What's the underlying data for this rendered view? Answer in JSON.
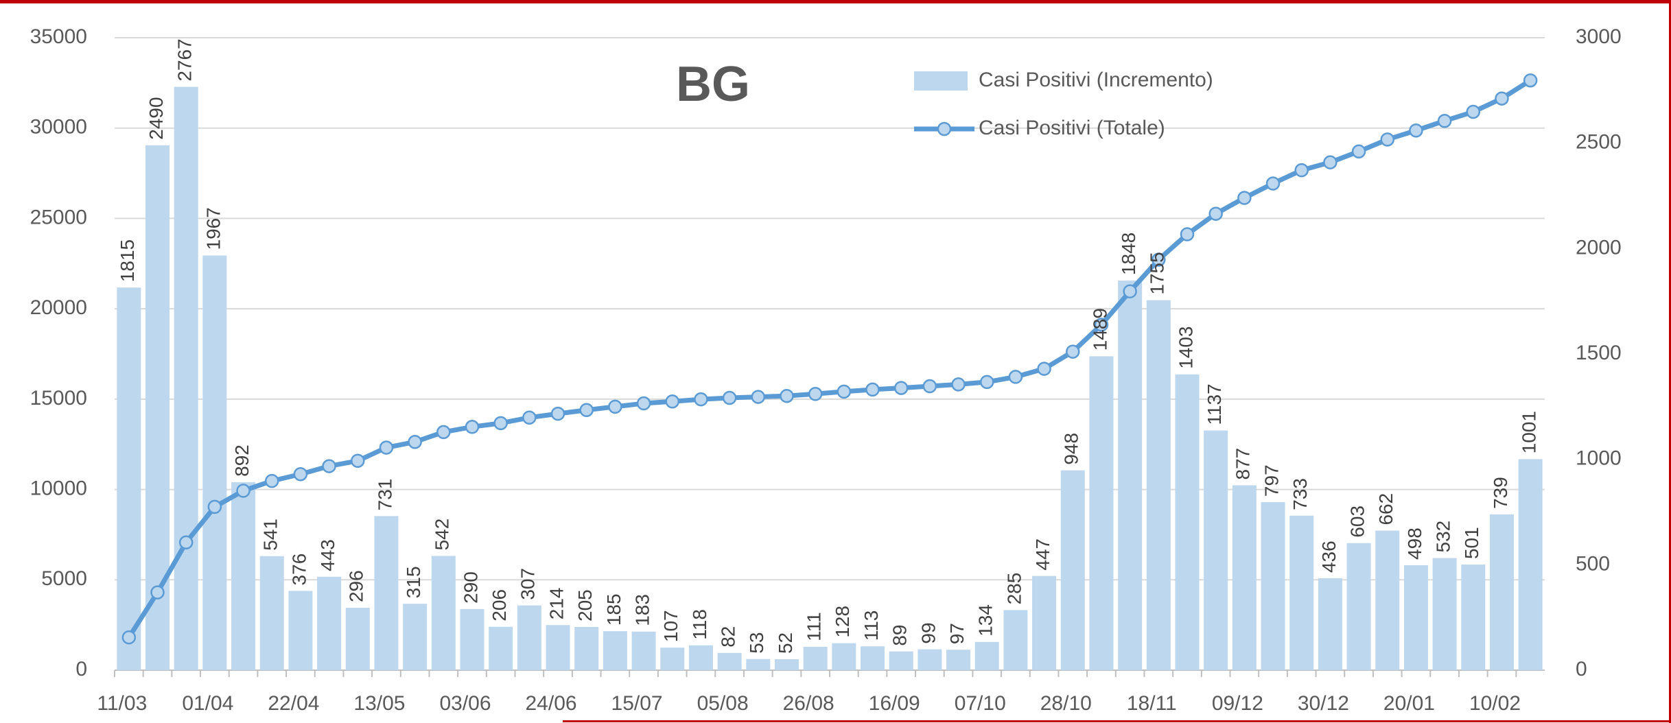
{
  "chart_data": {
    "type": "bar-line",
    "title": "BG",
    "categories": [
      "11/03",
      null,
      null,
      "01/04",
      null,
      null,
      "22/04",
      null,
      null,
      "13/05",
      null,
      null,
      "03/06",
      null,
      null,
      "24/06",
      null,
      null,
      "15/07",
      null,
      null,
      "05/08",
      null,
      null,
      "26/08",
      null,
      null,
      "16/09",
      null,
      null,
      "07/10",
      null,
      null,
      "28/10",
      null,
      null,
      "18/11",
      null,
      null,
      "09/12",
      null,
      null,
      "30/12",
      null,
      null,
      "20/01",
      null,
      null,
      "10/02",
      null
    ],
    "series": [
      {
        "name": "Casi Positivi (Incremento)",
        "type": "bar",
        "axis": "y2",
        "color": "#bdd7ee",
        "values": [
          1815,
          2490,
          2767,
          1967,
          892,
          541,
          376,
          443,
          296,
          731,
          315,
          542,
          290,
          206,
          307,
          214,
          205,
          185,
          183,
          107,
          118,
          82,
          53,
          52,
          111,
          128,
          113,
          89,
          99,
          97,
          134,
          285,
          447,
          948,
          1489,
          1848,
          1755,
          1403,
          1137,
          877,
          797,
          733,
          436,
          603,
          662,
          498,
          532,
          501,
          739,
          1001
        ]
      },
      {
        "name": "Casi Positivi (Totale)",
        "type": "line",
        "axis": "y",
        "color": "#5b9bd5",
        "values": [
          1815,
          4305,
          7072,
          9039,
          9931,
          10472,
          10848,
          11291,
          11587,
          12318,
          12633,
          13175,
          13465,
          13671,
          13978,
          14192,
          14397,
          14582,
          14765,
          14872,
          14990,
          15072,
          15125,
          15177,
          15288,
          15416,
          15529,
          15618,
          15717,
          15814,
          15948,
          16233,
          16680,
          17628,
          19117,
          20965,
          22720,
          24123,
          25260,
          26137,
          26934,
          27667,
          28103,
          28706,
          29368,
          29866,
          30398,
          30899,
          31638,
          32639
        ]
      }
    ],
    "ylim": [
      0,
      35000
    ],
    "yticks": [
      0,
      5000,
      10000,
      15000,
      20000,
      25000,
      30000,
      35000
    ],
    "y2lim": [
      0,
      3000
    ],
    "y2ticks": [
      0,
      500,
      1000,
      1500,
      2000,
      2500,
      3000
    ],
    "grid": true,
    "legend": "top-right"
  }
}
